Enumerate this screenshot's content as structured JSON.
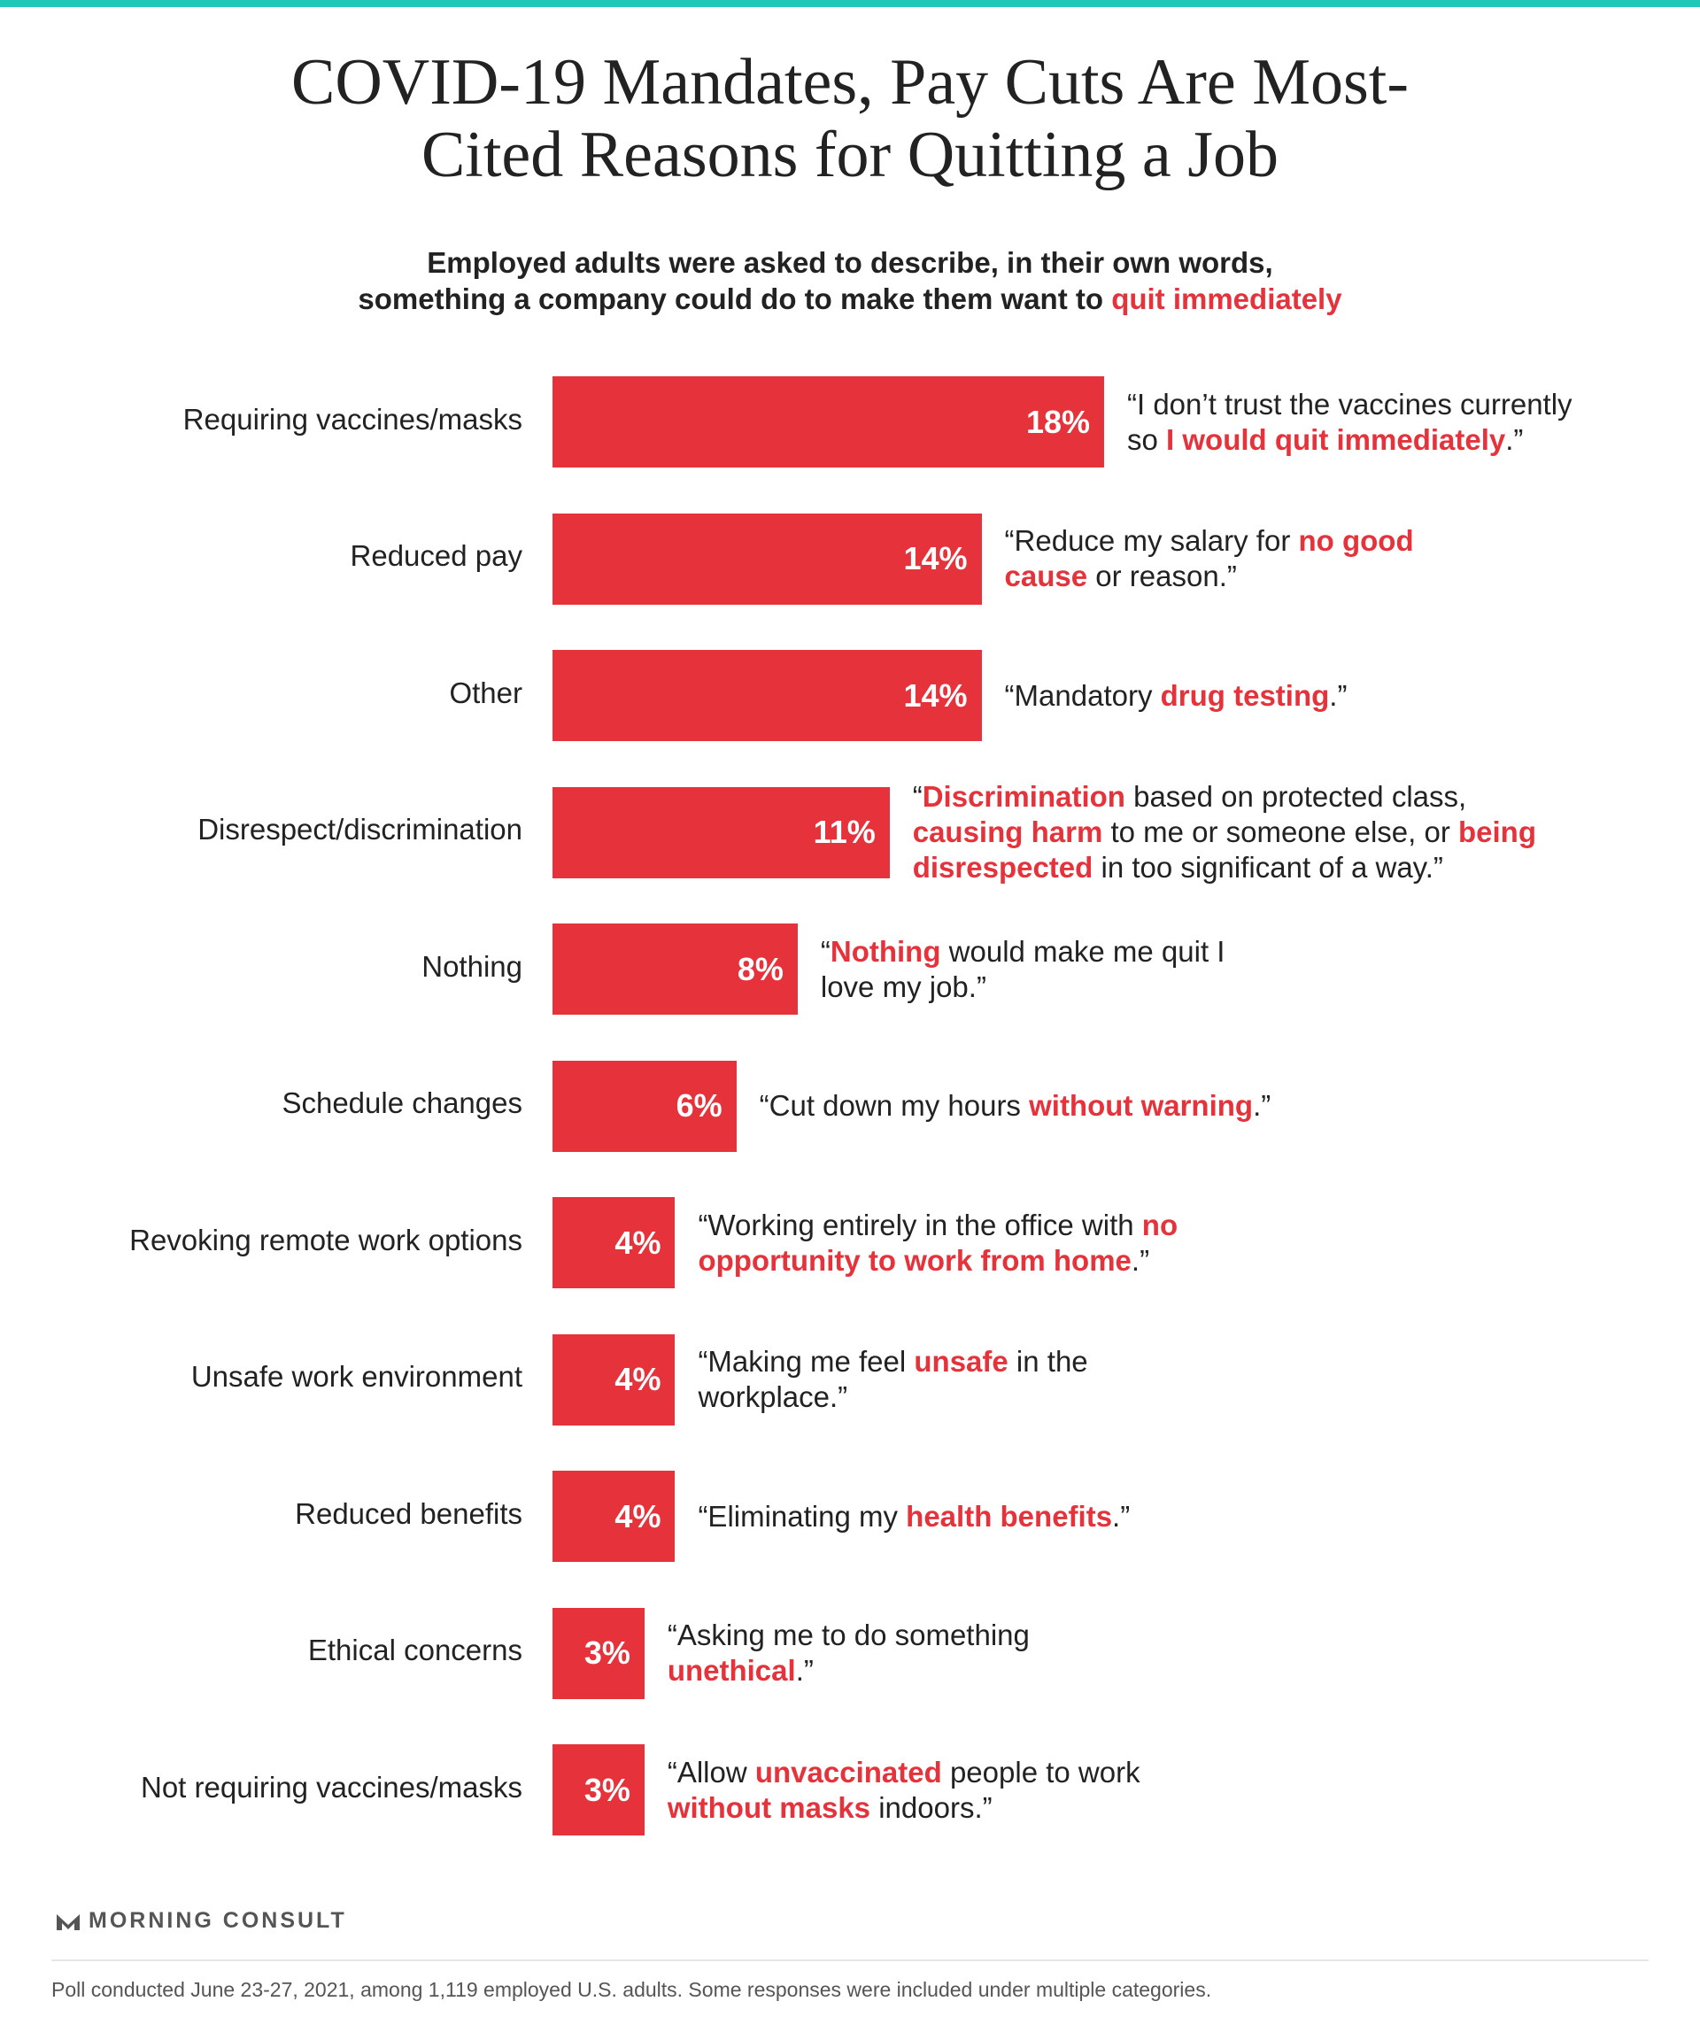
{
  "chart_data": {
    "type": "bar",
    "orientation": "horizontal",
    "title": [
      "COVID-19 Mandates, Pay Cuts Are Most-",
      "Cited Reasons for Quitting a Job"
    ],
    "subtitle": [
      [
        {
          "text": "Employed adults were asked to describe, in their own words,",
          "highlight": false
        }
      ],
      [
        {
          "text": "something a company could do to make them want to ",
          "highlight": false
        },
        {
          "text": "quit immediately",
          "highlight": true
        }
      ]
    ],
    "categories": [
      "Requiring vaccines/masks",
      "Reduced pay",
      "Other",
      "Disrespect/discrimination",
      "Nothing",
      "Schedule changes",
      "Revoking remote work options",
      "Unsafe work environment",
      "Reduced benefits",
      "Ethical concerns",
      "Not requiring vaccines/masks"
    ],
    "values": [
      18,
      14,
      14,
      11,
      8,
      6,
      4,
      4,
      4,
      3,
      3
    ],
    "value_labels": [
      "18%",
      "14%",
      "14%",
      "11%",
      "8%",
      "6%",
      "4%",
      "4%",
      "4%",
      "3%",
      "3%"
    ],
    "color": "#e5323b",
    "highlight_color": "#e5323b",
    "annotations": [
      [
        [
          {
            "text": "“I don’t trust the vaccines currently",
            "highlight": false
          }
        ],
        [
          {
            "text": "so ",
            "highlight": false
          },
          {
            "text": "I would quit immediately",
            "highlight": true
          },
          {
            "text": ".”",
            "highlight": false
          }
        ]
      ],
      [
        [
          {
            "text": "“Reduce my salary for ",
            "highlight": false
          },
          {
            "text": "no good",
            "highlight": true
          }
        ],
        [
          {
            "text": "cause",
            "highlight": true
          },
          {
            "text": " or reason.”",
            "highlight": false
          }
        ]
      ],
      [
        [
          {
            "text": "“Mandatory ",
            "highlight": false
          },
          {
            "text": "drug testing",
            "highlight": true
          },
          {
            "text": ".”",
            "highlight": false
          }
        ]
      ],
      [
        [
          {
            "text": "“",
            "highlight": false
          },
          {
            "text": "Discrimination",
            "highlight": true
          },
          {
            "text": " based on protected class,",
            "highlight": false
          }
        ],
        [
          {
            "text": "causing harm",
            "highlight": true
          },
          {
            "text": " to me or someone else, or ",
            "highlight": false
          },
          {
            "text": "being",
            "highlight": true
          }
        ],
        [
          {
            "text": "disrespected",
            "highlight": true
          },
          {
            "text": " in too significant of a way.”",
            "highlight": false
          }
        ]
      ],
      [
        [
          {
            "text": "“",
            "highlight": false
          },
          {
            "text": "Nothing",
            "highlight": true
          },
          {
            "text": " would make me quit I",
            "highlight": false
          }
        ],
        [
          {
            "text": "love my job.”",
            "highlight": false
          }
        ]
      ],
      [
        [
          {
            "text": "“Cut down my hours ",
            "highlight": false
          },
          {
            "text": "without warning",
            "highlight": true
          },
          {
            "text": ".”",
            "highlight": false
          }
        ]
      ],
      [
        [
          {
            "text": "“Working entirely in the office with ",
            "highlight": false
          },
          {
            "text": "no",
            "highlight": true
          }
        ],
        [
          {
            "text": "opportunity to work from home",
            "highlight": true
          },
          {
            "text": ".”",
            "highlight": false
          }
        ]
      ],
      [
        [
          {
            "text": "“Making me feel ",
            "highlight": false
          },
          {
            "text": "unsafe",
            "highlight": true
          },
          {
            "text": " in the",
            "highlight": false
          }
        ],
        [
          {
            "text": "workplace.”",
            "highlight": false
          }
        ]
      ],
      [
        [
          {
            "text": "“Eliminating my ",
            "highlight": false
          },
          {
            "text": "health benefits",
            "highlight": true
          },
          {
            "text": ".”",
            "highlight": false
          }
        ]
      ],
      [
        [
          {
            "text": "“Asking me to do something",
            "highlight": false
          }
        ],
        [
          {
            "text": "unethical",
            "highlight": true
          },
          {
            "text": ".”",
            "highlight": false
          }
        ]
      ],
      [
        [
          {
            "text": "“Allow ",
            "highlight": false
          },
          {
            "text": "unvaccinated",
            "highlight": true
          },
          {
            "text": " people to work",
            "highlight": false
          }
        ],
        [
          {
            "text": "without masks",
            "highlight": true
          },
          {
            "text": " indoors.”",
            "highlight": false
          }
        ]
      ]
    ],
    "brand": "MORNING CONSULT",
    "footnote": "Poll conducted June 23-27, 2021, among 1,119 employed U.S. adults. Some responses were included under multiple categories."
  }
}
